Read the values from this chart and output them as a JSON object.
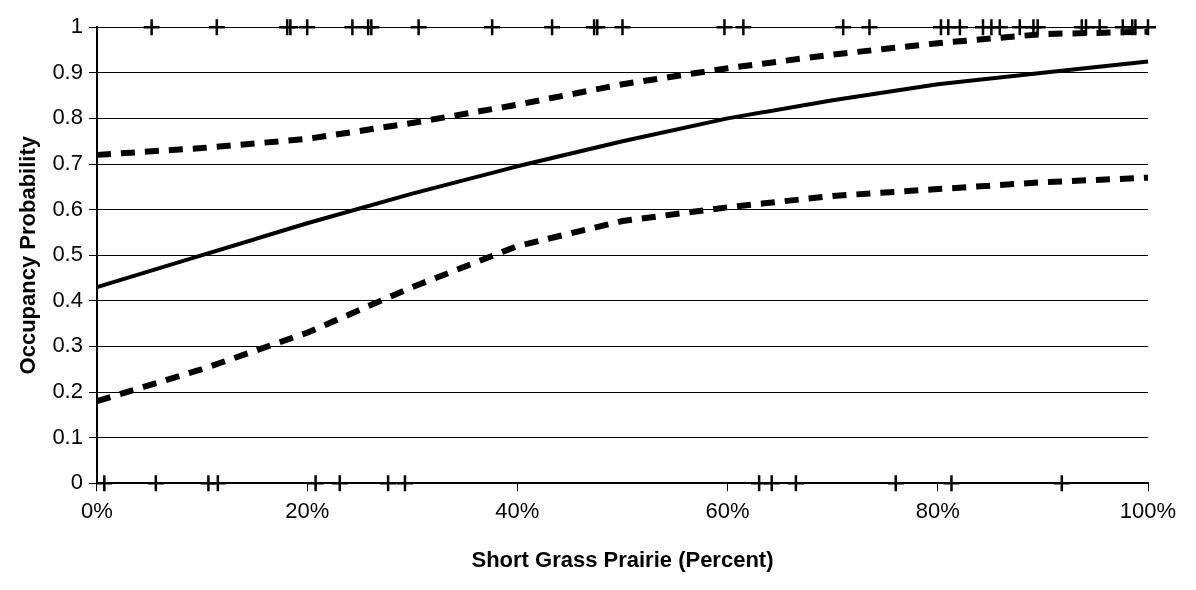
{
  "chart_data": {
    "type": "line",
    "xlabel": "Short Grass Prairie (Percent)",
    "ylabel": "Occupancy Probability",
    "xlim": [
      0,
      100
    ],
    "xticks": [
      {
        "value": 0,
        "label": "0%"
      },
      {
        "value": 20,
        "label": "20%"
      },
      {
        "value": 40,
        "label": "40%"
      },
      {
        "value": 60,
        "label": "60%"
      },
      {
        "value": 80,
        "label": "80%"
      },
      {
        "value": 100,
        "label": "100%"
      }
    ],
    "ylim": [
      0,
      1
    ],
    "yticks": [
      0,
      0.1,
      0.2,
      0.3,
      0.4,
      0.5,
      0.6,
      0.7,
      0.8,
      0.9,
      1
    ],
    "grid": "y",
    "legend": false,
    "series": [
      {
        "color": "#000000",
        "line_style": "solid",
        "marker": "none",
        "x": [
          0,
          10,
          20,
          30,
          40,
          50,
          60,
          70,
          80,
          90,
          100
        ],
        "values": [
          0.43,
          0.5,
          0.57,
          0.635,
          0.695,
          0.75,
          0.8,
          0.84,
          0.875,
          0.9,
          0.925
        ]
      },
      {
        "color": "#000000",
        "line_style": "dashed",
        "marker": "none",
        "x": [
          0,
          10,
          20,
          30,
          40,
          50,
          60,
          70,
          80,
          90,
          100
        ],
        "values": [
          0.72,
          0.735,
          0.755,
          0.79,
          0.83,
          0.875,
          0.91,
          0.94,
          0.965,
          0.985,
          0.99
        ]
      },
      {
        "color": "#000000",
        "line_style": "dashed",
        "marker": "none",
        "x": [
          0,
          10,
          20,
          30,
          40,
          50,
          60,
          70,
          80,
          90,
          100
        ],
        "values": [
          0.18,
          0.25,
          0.33,
          0.43,
          0.52,
          0.575,
          0.605,
          0.63,
          0.645,
          0.66,
          0.67
        ]
      },
      {
        "type": "scatter",
        "color": "#000000",
        "marker": "cross",
        "x": [
          5.2,
          11.4,
          18.1,
          18.4,
          20,
          24.3,
          25.8,
          26.1,
          30.6,
          37.6,
          43.3,
          47.3,
          47.6,
          50,
          59.7,
          61.5,
          71,
          73.5,
          80.3,
          81,
          82.1,
          84.3,
          85.1,
          85.9,
          87.8,
          89.1,
          89.5,
          93.7,
          94.1,
          95.4,
          97.6,
          98.5,
          98.8,
          100
        ],
        "values": [
          1,
          1,
          1,
          1,
          1,
          1,
          1,
          1,
          1,
          1,
          1,
          1,
          1,
          1,
          1,
          1,
          1,
          1,
          1,
          1,
          1,
          1,
          1,
          1,
          1,
          1,
          1,
          1,
          1,
          1,
          1,
          1,
          1,
          1
        ]
      },
      {
        "type": "scatter",
        "color": "#000000",
        "marker": "cross",
        "x": [
          0.7,
          5.6,
          10.6,
          11.5,
          20.8,
          23.1,
          27.7,
          29.3,
          63,
          64.2,
          66.5,
          76,
          81.3,
          91.8
        ],
        "values": [
          0,
          0,
          0,
          0,
          0,
          0,
          0,
          0,
          0,
          0,
          0,
          0,
          0,
          0
        ]
      }
    ]
  }
}
